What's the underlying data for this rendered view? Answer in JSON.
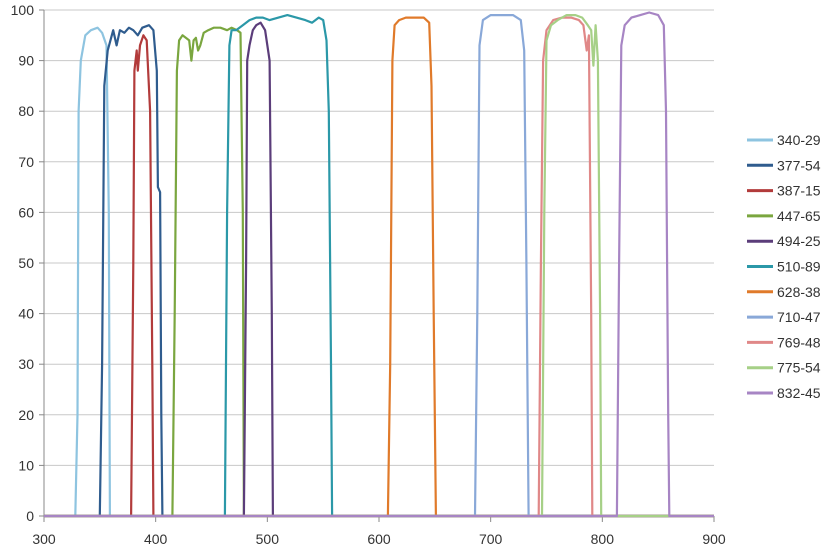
{
  "chart_data": {
    "type": "line",
    "title": "",
    "xlabel": "",
    "ylabel": "",
    "xlim": [
      300,
      900
    ],
    "ylim": [
      0,
      100
    ],
    "x_ticks": [
      "300",
      "400",
      "500",
      "600",
      "700",
      "800",
      "900"
    ],
    "y_ticks": [
      "0",
      "10",
      "20",
      "30",
      "40",
      "50",
      "60",
      "70",
      "80",
      "90",
      "100"
    ],
    "grid": "horizontal",
    "legend_position": "right",
    "series": [
      {
        "name": "340-29",
        "color": "#8ec4e0",
        "points": [
          [
            300,
            0
          ],
          [
            328,
            0
          ],
          [
            330,
            20
          ],
          [
            331,
            80
          ],
          [
            333,
            90
          ],
          [
            337,
            95
          ],
          [
            342,
            96
          ],
          [
            348,
            96.5
          ],
          [
            352,
            95.5
          ],
          [
            356,
            93
          ],
          [
            358,
            60
          ],
          [
            359,
            0
          ],
          [
            900,
            0
          ]
        ]
      },
      {
        "name": "377-54",
        "color": "#2f5c8e",
        "points": [
          [
            300,
            0
          ],
          [
            350,
            0
          ],
          [
            352,
            30
          ],
          [
            354,
            85
          ],
          [
            357,
            92
          ],
          [
            362,
            96
          ],
          [
            365,
            93
          ],
          [
            368,
            96
          ],
          [
            372,
            95.5
          ],
          [
            376,
            96.5
          ],
          [
            380,
            96
          ],
          [
            384,
            95
          ],
          [
            388,
            96.5
          ],
          [
            394,
            97
          ],
          [
            398,
            96
          ],
          [
            401,
            88
          ],
          [
            402,
            65
          ],
          [
            404,
            64
          ],
          [
            405,
            20
          ],
          [
            406,
            0
          ],
          [
            900,
            0
          ]
        ]
      },
      {
        "name": "387-15",
        "color": "#b23b3b",
        "points": [
          [
            300,
            0
          ],
          [
            378,
            0
          ],
          [
            380,
            50
          ],
          [
            381,
            88
          ],
          [
            383,
            92
          ],
          [
            384,
            88
          ],
          [
            386,
            93
          ],
          [
            389,
            95
          ],
          [
            392,
            94
          ],
          [
            395,
            80
          ],
          [
            397,
            30
          ],
          [
            398,
            0
          ],
          [
            900,
            0
          ]
        ]
      },
      {
        "name": "447-65",
        "color": "#7aa63f",
        "points": [
          [
            300,
            0
          ],
          [
            415,
            0
          ],
          [
            417,
            40
          ],
          [
            419,
            88
          ],
          [
            421,
            94
          ],
          [
            424,
            95
          ],
          [
            427,
            94.5
          ],
          [
            430,
            94
          ],
          [
            432,
            90
          ],
          [
            434,
            94
          ],
          [
            436,
            94.5
          ],
          [
            438,
            92
          ],
          [
            440,
            93
          ],
          [
            443,
            95.5
          ],
          [
            447,
            96
          ],
          [
            452,
            96.5
          ],
          [
            458,
            96.5
          ],
          [
            464,
            96
          ],
          [
            468,
            96.5
          ],
          [
            473,
            96
          ],
          [
            476,
            95.5
          ],
          [
            478,
            60
          ],
          [
            479,
            0
          ],
          [
            900,
            0
          ]
        ]
      },
      {
        "name": "494-25",
        "color": "#5b3d7a",
        "points": [
          [
            300,
            0
          ],
          [
            479,
            0
          ],
          [
            481,
            50
          ],
          [
            482,
            90
          ],
          [
            484,
            93
          ],
          [
            487,
            96
          ],
          [
            490,
            97
          ],
          [
            494,
            97.5
          ],
          [
            498,
            96
          ],
          [
            502,
            90
          ],
          [
            504,
            40
          ],
          [
            505,
            0
          ],
          [
            900,
            0
          ]
        ]
      },
      {
        "name": "510-89",
        "color": "#2b98a8",
        "points": [
          [
            300,
            0
          ],
          [
            462,
            0
          ],
          [
            464,
            60
          ],
          [
            466,
            93
          ],
          [
            468,
            96
          ],
          [
            472,
            96
          ],
          [
            478,
            97
          ],
          [
            484,
            98
          ],
          [
            490,
            98.5
          ],
          [
            496,
            98.5
          ],
          [
            502,
            98
          ],
          [
            510,
            98.5
          ],
          [
            518,
            99
          ],
          [
            526,
            98.5
          ],
          [
            534,
            98
          ],
          [
            540,
            97.5
          ],
          [
            546,
            98.5
          ],
          [
            550,
            98
          ],
          [
            553,
            94
          ],
          [
            555,
            80
          ],
          [
            557,
            30
          ],
          [
            558,
            0
          ],
          [
            900,
            0
          ]
        ]
      },
      {
        "name": "628-38",
        "color": "#e07a2a",
        "points": [
          [
            300,
            0
          ],
          [
            608,
            0
          ],
          [
            610,
            30
          ],
          [
            612,
            90
          ],
          [
            614,
            97
          ],
          [
            618,
            98
          ],
          [
            624,
            98.5
          ],
          [
            632,
            98.5
          ],
          [
            640,
            98.5
          ],
          [
            645,
            97.5
          ],
          [
            647,
            85
          ],
          [
            649,
            40
          ],
          [
            651,
            0
          ],
          [
            900,
            0
          ]
        ]
      },
      {
        "name": "710-47",
        "color": "#89a8d8",
        "points": [
          [
            300,
            0
          ],
          [
            686,
            0
          ],
          [
            688,
            40
          ],
          [
            690,
            93
          ],
          [
            693,
            98
          ],
          [
            700,
            99
          ],
          [
            710,
            99
          ],
          [
            720,
            99
          ],
          [
            727,
            98
          ],
          [
            730,
            92
          ],
          [
            732,
            50
          ],
          [
            734,
            0
          ],
          [
            900,
            0
          ]
        ]
      },
      {
        "name": "769-48",
        "color": "#e08888",
        "points": [
          [
            300,
            0
          ],
          [
            743,
            0
          ],
          [
            745,
            50
          ],
          [
            747,
            90
          ],
          [
            750,
            96
          ],
          [
            756,
            98
          ],
          [
            764,
            98.5
          ],
          [
            772,
            98.5
          ],
          [
            779,
            98
          ],
          [
            783,
            97
          ],
          [
            786,
            92
          ],
          [
            788,
            95
          ],
          [
            790,
            40
          ],
          [
            791,
            0
          ],
          [
            900,
            0
          ]
        ]
      },
      {
        "name": "775-54",
        "color": "#a6d087",
        "points": [
          [
            300,
            0
          ],
          [
            746,
            0
          ],
          [
            748,
            60
          ],
          [
            750,
            94
          ],
          [
            754,
            97
          ],
          [
            760,
            98
          ],
          [
            768,
            99
          ],
          [
            776,
            99
          ],
          [
            782,
            98.5
          ],
          [
            787,
            97
          ],
          [
            790,
            96
          ],
          [
            792,
            89
          ],
          [
            794,
            97
          ],
          [
            796,
            90
          ],
          [
            798,
            40
          ],
          [
            799,
            0
          ],
          [
            900,
            0
          ]
        ]
      },
      {
        "name": "832-45",
        "color": "#a785c4",
        "points": [
          [
            300,
            0
          ],
          [
            813,
            0
          ],
          [
            815,
            50
          ],
          [
            817,
            93
          ],
          [
            820,
            97
          ],
          [
            826,
            98.5
          ],
          [
            834,
            99
          ],
          [
            842,
            99.5
          ],
          [
            850,
            99
          ],
          [
            855,
            97
          ],
          [
            857,
            80
          ],
          [
            859,
            20
          ],
          [
            860,
            0
          ],
          [
            900,
            0
          ]
        ]
      }
    ]
  }
}
